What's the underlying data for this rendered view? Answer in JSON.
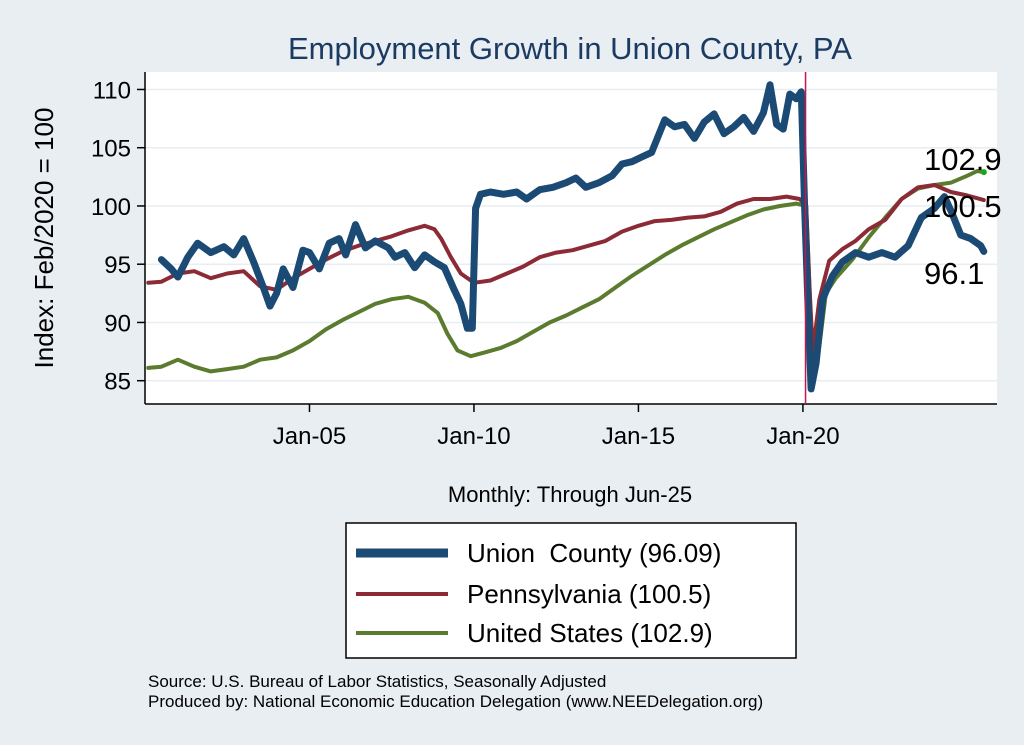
{
  "chart_data": {
    "type": "line",
    "title": "Employment Growth in Union  County, PA",
    "ylabel": "Index: Feb/2020 = 100",
    "xlabel": "Monthly: Through Jun-25",
    "ylim": [
      83,
      111.5
    ],
    "xlim": [
      2000.0,
      2025.9
    ],
    "yticks": [
      85,
      90,
      95,
      100,
      105,
      110
    ],
    "xticks": [
      {
        "x": 2005.0,
        "label": "Jan-05"
      },
      {
        "x": 2010.0,
        "label": "Jan-10"
      },
      {
        "x": 2015.0,
        "label": "Jan-15"
      },
      {
        "x": 2020.0,
        "label": "Jan-20"
      }
    ],
    "reference_line_x": 2020.08,
    "series": [
      {
        "name": "Union County",
        "legend": "Union  County (96.09)",
        "color": "#1b4a74",
        "end_label": "96.1",
        "points": [
          [
            2000.5,
            95.4
          ],
          [
            2000.8,
            94.6
          ],
          [
            2001.0,
            93.9
          ],
          [
            2001.3,
            95.6
          ],
          [
            2001.6,
            96.8
          ],
          [
            2002.0,
            96.0
          ],
          [
            2002.4,
            96.5
          ],
          [
            2002.7,
            95.8
          ],
          [
            2003.0,
            97.2
          ],
          [
            2003.3,
            95.2
          ],
          [
            2003.6,
            93.0
          ],
          [
            2003.8,
            91.4
          ],
          [
            2004.0,
            92.5
          ],
          [
            2004.2,
            94.6
          ],
          [
            2004.5,
            93.0
          ],
          [
            2004.8,
            96.2
          ],
          [
            2005.0,
            96.0
          ],
          [
            2005.3,
            94.6
          ],
          [
            2005.6,
            96.8
          ],
          [
            2005.9,
            97.2
          ],
          [
            2006.1,
            95.8
          ],
          [
            2006.4,
            98.4
          ],
          [
            2006.7,
            96.4
          ],
          [
            2007.0,
            97.0
          ],
          [
            2007.4,
            96.4
          ],
          [
            2007.6,
            95.6
          ],
          [
            2007.9,
            96.0
          ],
          [
            2008.2,
            94.7
          ],
          [
            2008.5,
            95.8
          ],
          [
            2008.8,
            95.2
          ],
          [
            2009.1,
            94.7
          ],
          [
            2009.4,
            92.8
          ],
          [
            2009.6,
            91.6
          ],
          [
            2009.8,
            89.5
          ],
          [
            2009.95,
            89.5
          ],
          [
            2010.05,
            99.8
          ],
          [
            2010.2,
            101.0
          ],
          [
            2010.5,
            101.2
          ],
          [
            2010.9,
            101.0
          ],
          [
            2011.3,
            101.2
          ],
          [
            2011.6,
            100.6
          ],
          [
            2012.0,
            101.4
          ],
          [
            2012.4,
            101.6
          ],
          [
            2012.8,
            102.0
          ],
          [
            2013.1,
            102.4
          ],
          [
            2013.4,
            101.6
          ],
          [
            2013.8,
            102.0
          ],
          [
            2014.2,
            102.6
          ],
          [
            2014.5,
            103.6
          ],
          [
            2014.8,
            103.8
          ],
          [
            2015.1,
            104.2
          ],
          [
            2015.4,
            104.6
          ],
          [
            2015.8,
            107.4
          ],
          [
            2016.1,
            106.8
          ],
          [
            2016.4,
            107.0
          ],
          [
            2016.7,
            105.8
          ],
          [
            2017.0,
            107.2
          ],
          [
            2017.3,
            107.9
          ],
          [
            2017.6,
            106.2
          ],
          [
            2017.9,
            106.8
          ],
          [
            2018.2,
            107.6
          ],
          [
            2018.5,
            106.4
          ],
          [
            2018.8,
            108.0
          ],
          [
            2019.0,
            110.4
          ],
          [
            2019.2,
            107.0
          ],
          [
            2019.4,
            106.6
          ],
          [
            2019.6,
            109.6
          ],
          [
            2019.8,
            109.2
          ],
          [
            2019.95,
            109.8
          ],
          [
            2020.05,
            100.0
          ],
          [
            2020.15,
            92.0
          ],
          [
            2020.25,
            84.3
          ],
          [
            2020.4,
            86.5
          ],
          [
            2020.6,
            92.0
          ],
          [
            2020.9,
            94.0
          ],
          [
            2021.2,
            95.2
          ],
          [
            2021.6,
            96.0
          ],
          [
            2022.0,
            95.6
          ],
          [
            2022.4,
            96.0
          ],
          [
            2022.8,
            95.6
          ],
          [
            2023.2,
            96.6
          ],
          [
            2023.6,
            99.0
          ],
          [
            2024.0,
            99.8
          ],
          [
            2024.3,
            100.8
          ],
          [
            2024.5,
            99.6
          ],
          [
            2024.8,
            97.5
          ],
          [
            2025.1,
            97.2
          ],
          [
            2025.4,
            96.6
          ],
          [
            2025.5,
            96.1
          ]
        ]
      },
      {
        "name": "Pennsylvania",
        "legend": "Pennsylvania (100.5)",
        "color": "#8c2b35",
        "end_label": "100.5",
        "points": [
          [
            2000.1,
            93.4
          ],
          [
            2000.5,
            93.5
          ],
          [
            2001.0,
            94.2
          ],
          [
            2001.5,
            94.4
          ],
          [
            2002.0,
            93.8
          ],
          [
            2002.5,
            94.2
          ],
          [
            2003.0,
            94.4
          ],
          [
            2003.5,
            93.1
          ],
          [
            2004.0,
            92.8
          ],
          [
            2004.5,
            93.8
          ],
          [
            2005.0,
            94.6
          ],
          [
            2005.5,
            95.4
          ],
          [
            2006.0,
            96.1
          ],
          [
            2006.5,
            96.6
          ],
          [
            2007.0,
            97.0
          ],
          [
            2007.5,
            97.4
          ],
          [
            2008.0,
            97.9
          ],
          [
            2008.5,
            98.3
          ],
          [
            2008.8,
            98.0
          ],
          [
            2009.0,
            97.2
          ],
          [
            2009.3,
            95.6
          ],
          [
            2009.6,
            94.2
          ],
          [
            2010.0,
            93.4
          ],
          [
            2010.5,
            93.6
          ],
          [
            2011.0,
            94.2
          ],
          [
            2011.5,
            94.8
          ],
          [
            2012.0,
            95.6
          ],
          [
            2012.5,
            96.0
          ],
          [
            2013.0,
            96.2
          ],
          [
            2013.5,
            96.6
          ],
          [
            2014.0,
            97.0
          ],
          [
            2014.5,
            97.8
          ],
          [
            2015.0,
            98.3
          ],
          [
            2015.5,
            98.7
          ],
          [
            2016.0,
            98.8
          ],
          [
            2016.5,
            99.0
          ],
          [
            2017.0,
            99.1
          ],
          [
            2017.5,
            99.5
          ],
          [
            2018.0,
            100.2
          ],
          [
            2018.5,
            100.6
          ],
          [
            2019.0,
            100.6
          ],
          [
            2019.5,
            100.8
          ],
          [
            2019.9,
            100.6
          ],
          [
            2020.1,
            100.0
          ],
          [
            2020.2,
            93.0
          ],
          [
            2020.3,
            87.5
          ],
          [
            2020.5,
            92.0
          ],
          [
            2020.8,
            95.3
          ],
          [
            2021.2,
            96.3
          ],
          [
            2021.6,
            97.0
          ],
          [
            2022.0,
            98.0
          ],
          [
            2022.5,
            98.8
          ],
          [
            2023.0,
            100.6
          ],
          [
            2023.5,
            101.6
          ],
          [
            2024.0,
            101.8
          ],
          [
            2024.5,
            101.2
          ],
          [
            2025.0,
            100.9
          ],
          [
            2025.5,
            100.5
          ]
        ]
      },
      {
        "name": "United States",
        "legend": "United States (102.9)",
        "color": "#5b7b2e",
        "end_label": "102.9",
        "points": [
          [
            2000.1,
            86.1
          ],
          [
            2000.5,
            86.2
          ],
          [
            2001.0,
            86.8
          ],
          [
            2001.5,
            86.2
          ],
          [
            2002.0,
            85.8
          ],
          [
            2002.5,
            86.0
          ],
          [
            2003.0,
            86.2
          ],
          [
            2003.5,
            86.8
          ],
          [
            2004.0,
            87.0
          ],
          [
            2004.5,
            87.6
          ],
          [
            2005.0,
            88.4
          ],
          [
            2005.5,
            89.4
          ],
          [
            2006.0,
            90.2
          ],
          [
            2006.5,
            90.9
          ],
          [
            2007.0,
            91.6
          ],
          [
            2007.5,
            92.0
          ],
          [
            2008.0,
            92.2
          ],
          [
            2008.5,
            91.7
          ],
          [
            2008.9,
            90.8
          ],
          [
            2009.2,
            89.0
          ],
          [
            2009.5,
            87.6
          ],
          [
            2009.9,
            87.1
          ],
          [
            2010.3,
            87.4
          ],
          [
            2010.8,
            87.8
          ],
          [
            2011.3,
            88.4
          ],
          [
            2011.8,
            89.2
          ],
          [
            2012.3,
            90.0
          ],
          [
            2012.8,
            90.6
          ],
          [
            2013.3,
            91.3
          ],
          [
            2013.8,
            92.0
          ],
          [
            2014.3,
            93.0
          ],
          [
            2014.8,
            94.0
          ],
          [
            2015.3,
            94.9
          ],
          [
            2015.8,
            95.8
          ],
          [
            2016.3,
            96.6
          ],
          [
            2016.8,
            97.3
          ],
          [
            2017.3,
            98.0
          ],
          [
            2017.8,
            98.6
          ],
          [
            2018.3,
            99.2
          ],
          [
            2018.8,
            99.7
          ],
          [
            2019.3,
            100.0
          ],
          [
            2019.8,
            100.2
          ],
          [
            2020.1,
            100.0
          ],
          [
            2020.2,
            93.0
          ],
          [
            2020.3,
            85.4
          ],
          [
            2020.5,
            88.0
          ],
          [
            2020.7,
            92.5
          ],
          [
            2021.0,
            93.8
          ],
          [
            2021.5,
            95.4
          ],
          [
            2022.0,
            97.3
          ],
          [
            2022.5,
            99.0
          ],
          [
            2023.0,
            100.6
          ],
          [
            2023.5,
            101.5
          ],
          [
            2024.0,
            101.8
          ],
          [
            2024.5,
            102.0
          ],
          [
            2025.0,
            102.6
          ],
          [
            2025.3,
            103.0
          ],
          [
            2025.5,
            102.9
          ]
        ]
      }
    ]
  },
  "legend": {
    "items": [
      {
        "label": "Union  County (96.09)"
      },
      {
        "label": "Pennsylvania (100.5)"
      },
      {
        "label": "United States (102.9)"
      }
    ]
  },
  "footer": {
    "source": "Source: U.S. Bureau of Labor Statistics, Seasonally Adjusted",
    "produced_by": "Produced by: National Economic Education Delegation (www.NEEDelegation.org)"
  }
}
